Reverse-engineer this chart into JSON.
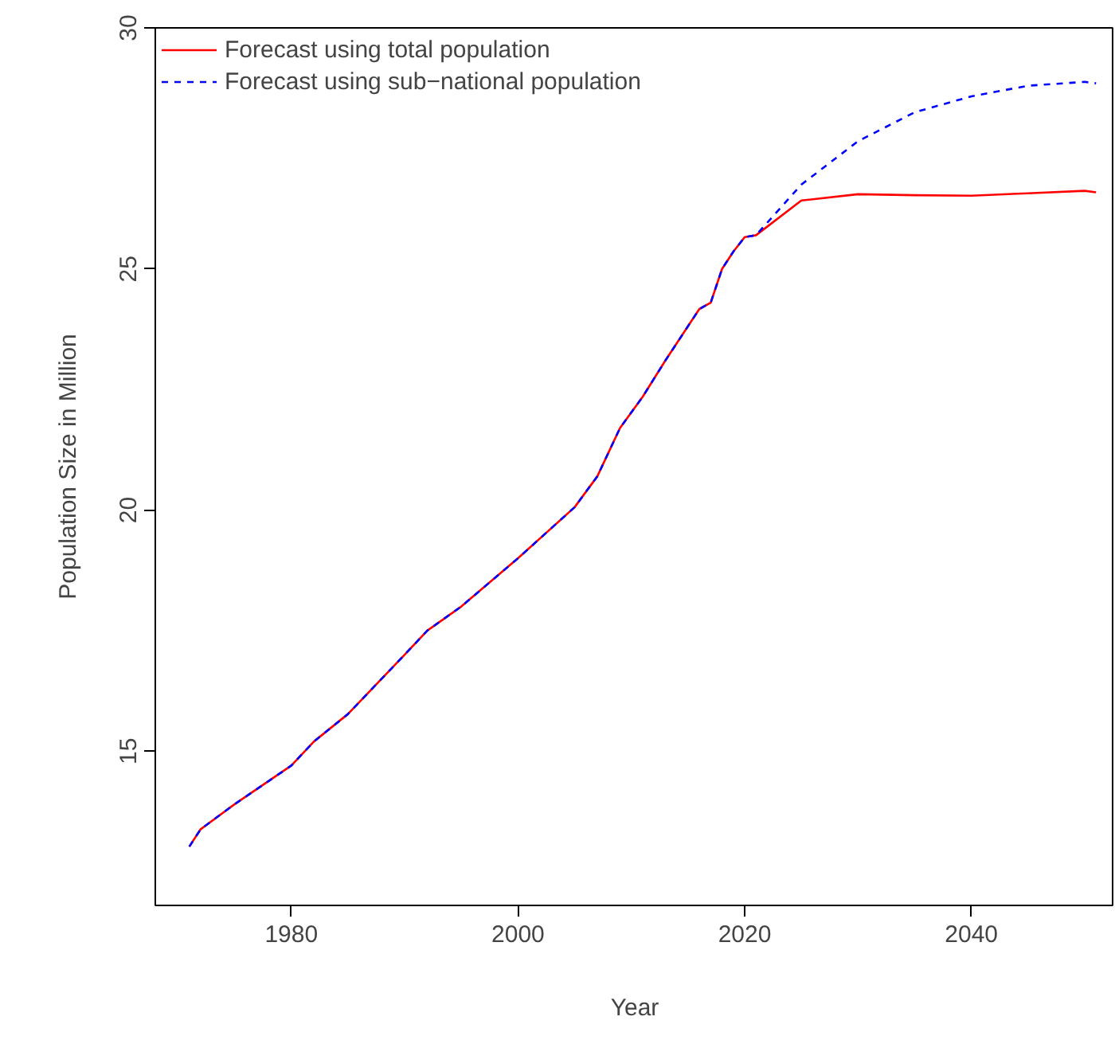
{
  "chart_data": {
    "type": "line",
    "xlabel": "Year",
    "ylabel": "Population Size in Million",
    "xlim": [
      1968,
      2052.6
    ],
    "ylim": [
      11.8,
      30
    ],
    "xticks": [
      1980,
      2000,
      2020,
      2040
    ],
    "yticks": [
      15,
      20,
      25,
      30
    ],
    "grid": false,
    "legend": "top left",
    "x": [
      1971,
      1972,
      1975,
      1980,
      1982,
      1985,
      1990,
      1992,
      1995,
      2000,
      2005,
      2007,
      2009,
      2011,
      2013,
      2016,
      2017,
      2018,
      2019,
      2020,
      2021,
      2025,
      2030,
      2035,
      2040,
      2045,
      2050,
      2051
    ],
    "series": [
      {
        "name": "Forecast using total population",
        "color": "#ff0000",
        "line_style": "solid",
        "values": [
          13.02,
          13.38,
          13.9,
          14.7,
          15.2,
          15.77,
          17.0,
          17.5,
          18.0,
          19.0,
          20.06,
          20.7,
          21.7,
          22.35,
          23.1,
          24.17,
          24.3,
          25.0,
          25.36,
          25.66,
          25.7,
          26.42,
          26.55,
          26.53,
          26.52,
          26.57,
          26.62,
          26.59
        ]
      },
      {
        "name": "Forecast using sub−national population",
        "color": "#0000ff",
        "line_style": "dashed",
        "values": [
          13.02,
          13.38,
          13.9,
          14.7,
          15.2,
          15.77,
          17.0,
          17.5,
          18.0,
          19.0,
          20.06,
          20.7,
          21.7,
          22.35,
          23.1,
          24.17,
          24.3,
          25.0,
          25.36,
          25.66,
          25.7,
          26.75,
          27.65,
          28.25,
          28.58,
          28.8,
          28.88,
          28.85
        ]
      }
    ]
  }
}
